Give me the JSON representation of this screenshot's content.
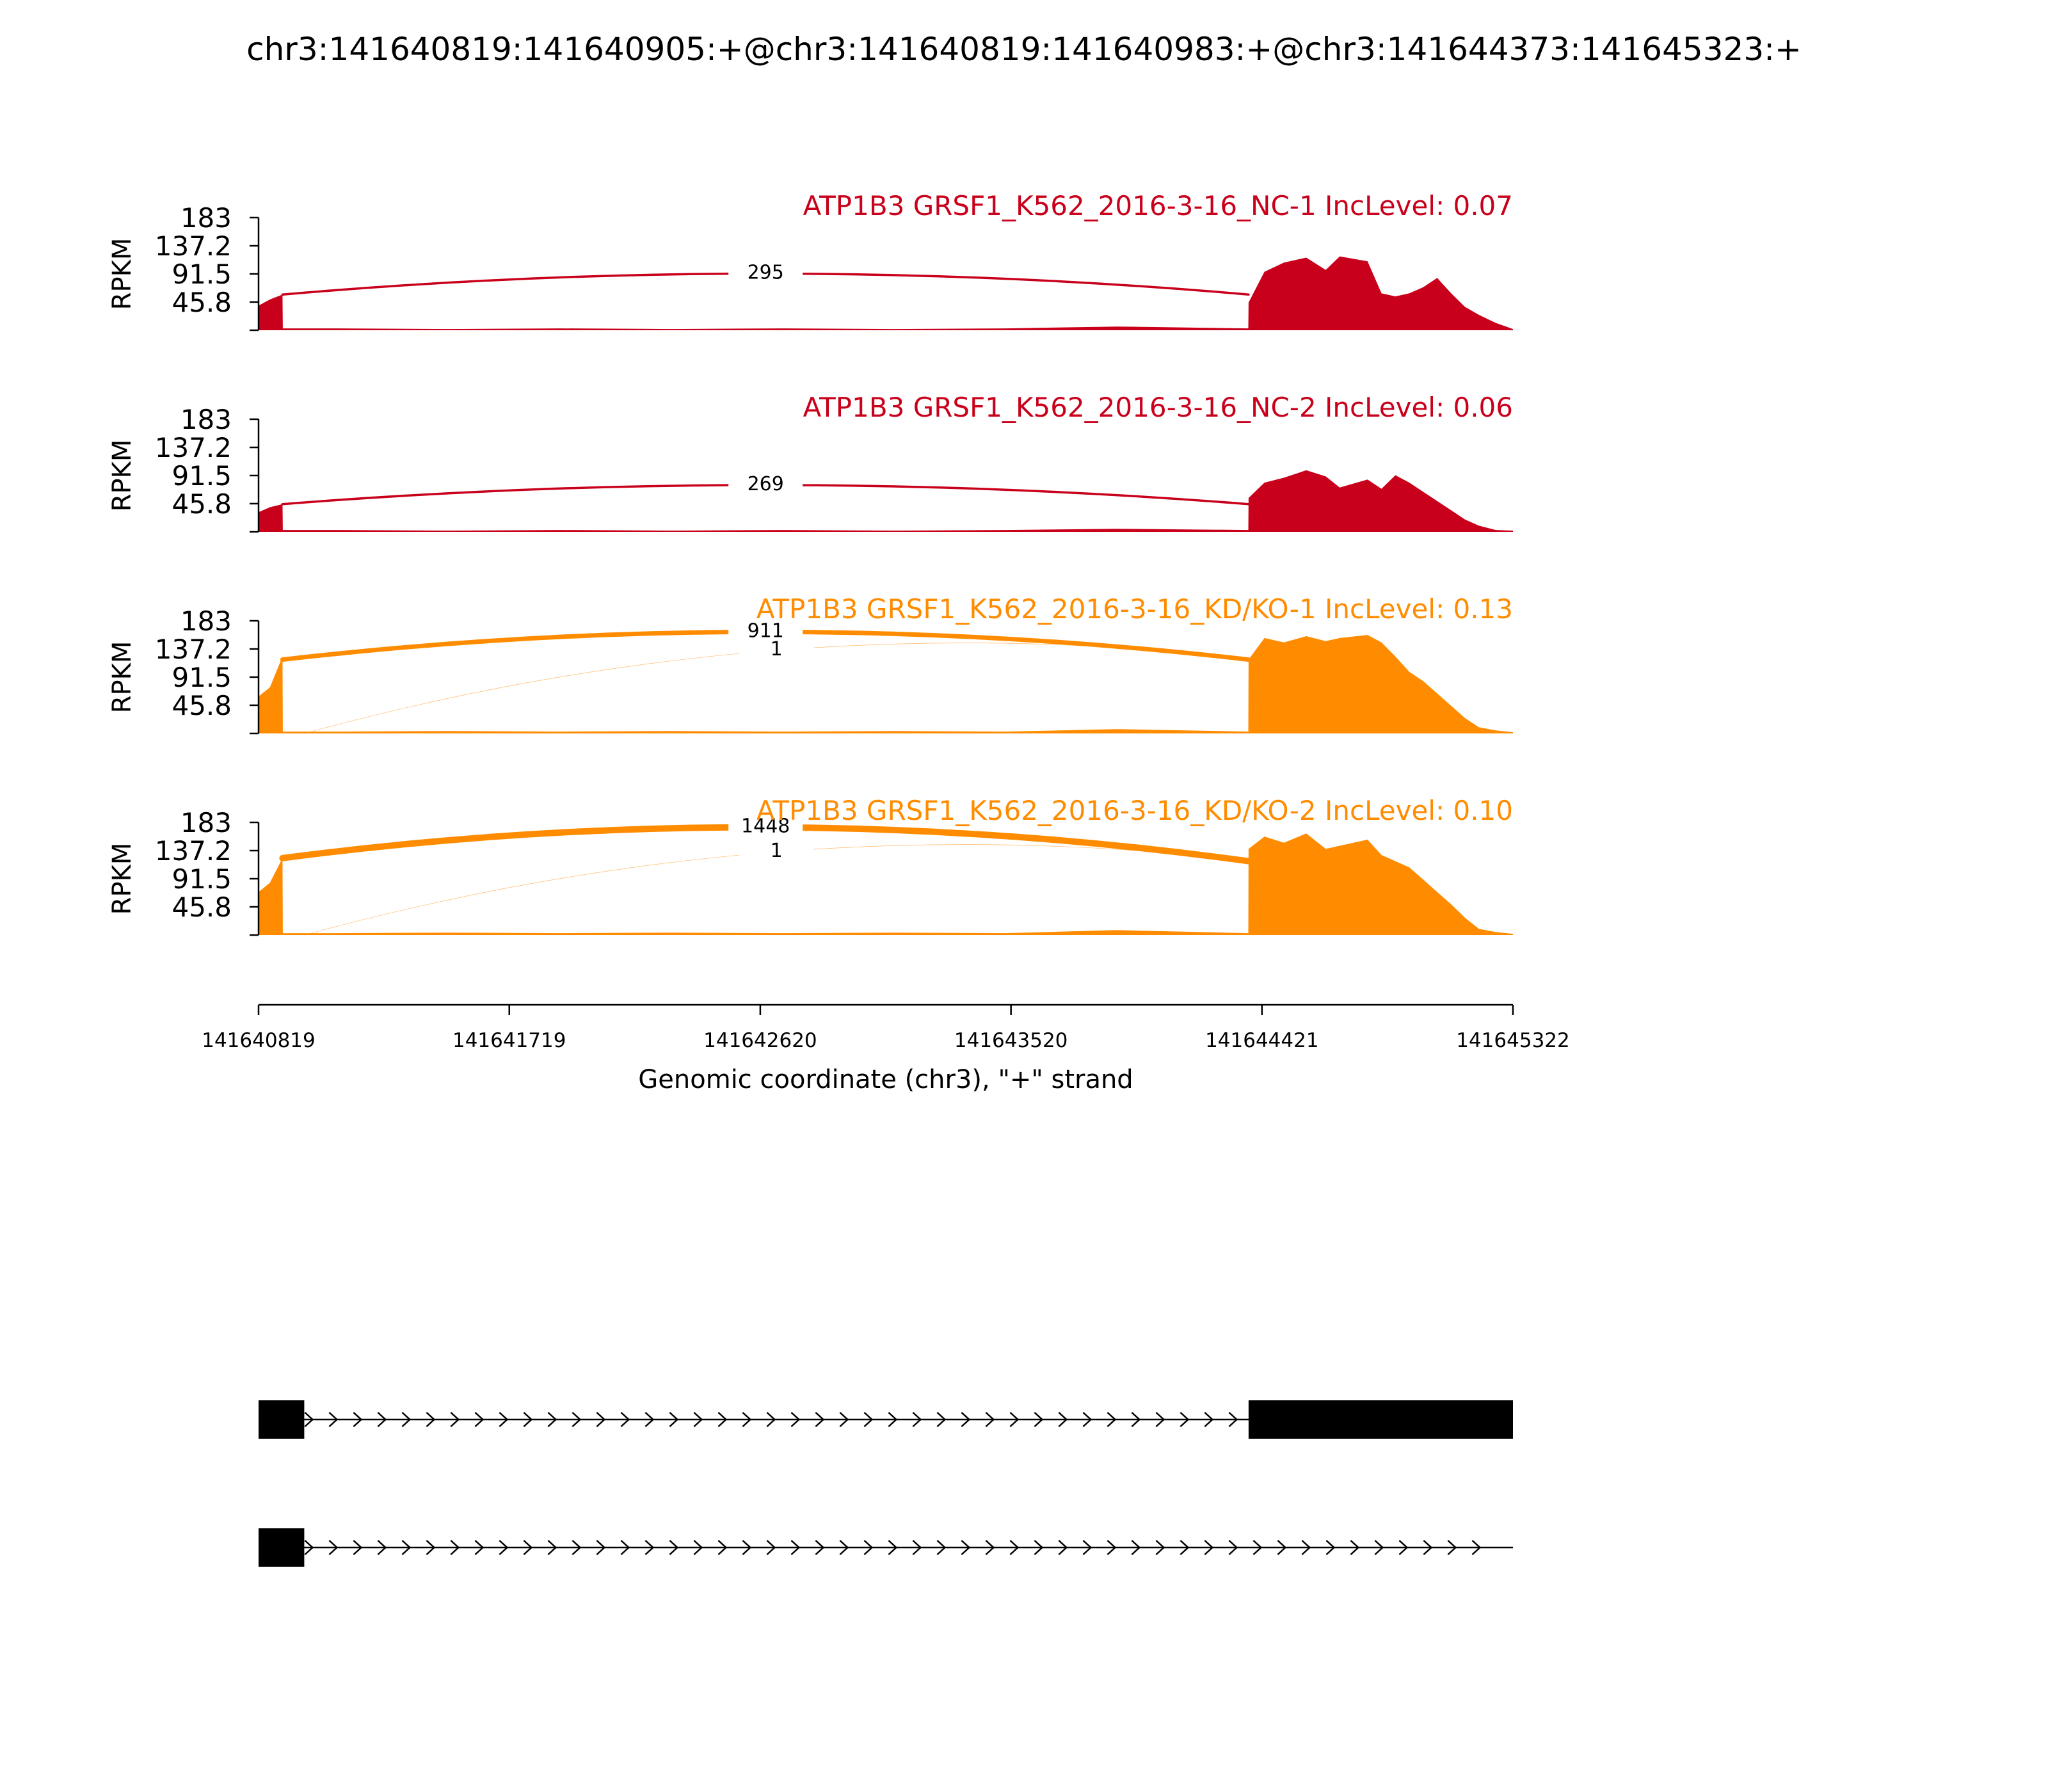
{
  "figure": {
    "title": "chr3:141640819:141640905:+@chr3:141640819:141640983:+@chr3:141644373:141645323:+"
  },
  "chart_data": {
    "type": "area",
    "genome_start": 141640819,
    "genome_end": 141645322,
    "xlabel": "Genomic coordinate (chr3), \"+\" strand",
    "x_ticks": [
      "141640819",
      "141641719",
      "141642620",
      "141643520",
      "141644421",
      "141645322"
    ],
    "ylabel": "RPKM",
    "y_ticks": [
      "183",
      "137.2",
      "91.5",
      "45.8"
    ],
    "ylim": [
      0,
      183
    ],
    "tracks": [
      {
        "label": "ATP1B3 GRSF1_K562_2016-3-16_NC-1 IncLevel: 0.07",
        "color": "#C9001B",
        "junctions": [
          {
            "from": 141640905,
            "to": 141644373,
            "count": "295",
            "peak": 92,
            "end_y": 58,
            "width": 3.5
          }
        ],
        "coverage": [
          [
            141640819,
            40
          ],
          [
            141640860,
            50
          ],
          [
            141640905,
            58
          ],
          [
            141640906,
            3
          ],
          [
            141641100,
            3
          ],
          [
            141641500,
            2
          ],
          [
            141641900,
            3
          ],
          [
            141642300,
            2
          ],
          [
            141642700,
            3
          ],
          [
            141643100,
            2
          ],
          [
            141643500,
            3
          ],
          [
            141643900,
            6
          ],
          [
            141644372,
            3
          ],
          [
            141644373,
            45
          ],
          [
            141644430,
            95
          ],
          [
            141644500,
            110
          ],
          [
            141644580,
            118
          ],
          [
            141644650,
            98
          ],
          [
            141644700,
            120
          ],
          [
            141644800,
            112
          ],
          [
            141644850,
            60
          ],
          [
            141644900,
            55
          ],
          [
            141644950,
            60
          ],
          [
            141645000,
            70
          ],
          [
            141645050,
            85
          ],
          [
            141645100,
            60
          ],
          [
            141645150,
            38
          ],
          [
            141645200,
            25
          ],
          [
            141645260,
            12
          ],
          [
            141645322,
            2
          ]
        ]
      },
      {
        "label": "ATP1B3 GRSF1_K562_2016-3-16_NC-2 IncLevel: 0.06",
        "color": "#C9001B",
        "junctions": [
          {
            "from": 141640905,
            "to": 141644373,
            "count": "269",
            "peak": 76,
            "end_y": 45,
            "width": 3.5
          }
        ],
        "coverage": [
          [
            141640819,
            32
          ],
          [
            141640860,
            40
          ],
          [
            141640905,
            45
          ],
          [
            141640906,
            3
          ],
          [
            141641100,
            3
          ],
          [
            141641500,
            2
          ],
          [
            141641900,
            3
          ],
          [
            141642300,
            2
          ],
          [
            141642700,
            3
          ],
          [
            141643100,
            2
          ],
          [
            141643500,
            3
          ],
          [
            141643900,
            5
          ],
          [
            141644372,
            3
          ],
          [
            141644373,
            55
          ],
          [
            141644430,
            80
          ],
          [
            141644500,
            88
          ],
          [
            141644580,
            100
          ],
          [
            141644650,
            90
          ],
          [
            141644700,
            72
          ],
          [
            141644800,
            85
          ],
          [
            141644850,
            70
          ],
          [
            141644900,
            92
          ],
          [
            141644950,
            80
          ],
          [
            141645000,
            65
          ],
          [
            141645050,
            50
          ],
          [
            141645100,
            35
          ],
          [
            141645150,
            20
          ],
          [
            141645200,
            10
          ],
          [
            141645260,
            3
          ],
          [
            141645322,
            2
          ]
        ]
      },
      {
        "label": "ATP1B3 GRSF1_K562_2016-3-16_KD/KO-1 IncLevel: 0.13",
        "color": "#FF8C00",
        "junctions": [
          {
            "from": 141640905,
            "to": 141644373,
            "count": "911",
            "peak": 165,
            "end_y": 120,
            "width": 7
          },
          {
            "from": 141640983,
            "to": 141644373,
            "count": "1",
            "peak": 135,
            "end_y": 0,
            "width": 0.7
          }
        ],
        "coverage": [
          [
            141640819,
            60
          ],
          [
            141640860,
            75
          ],
          [
            141640905,
            125
          ],
          [
            141640906,
            3
          ],
          [
            141641100,
            3
          ],
          [
            141641500,
            4
          ],
          [
            141641900,
            3
          ],
          [
            141642300,
            4
          ],
          [
            141642700,
            3
          ],
          [
            141643100,
            4
          ],
          [
            141643500,
            3
          ],
          [
            141643900,
            7
          ],
          [
            141644372,
            3
          ],
          [
            141644373,
            120
          ],
          [
            141644430,
            155
          ],
          [
            141644500,
            148
          ],
          [
            141644580,
            158
          ],
          [
            141644650,
            150
          ],
          [
            141644700,
            155
          ],
          [
            141644800,
            160
          ],
          [
            141644850,
            148
          ],
          [
            141644900,
            125
          ],
          [
            141644950,
            100
          ],
          [
            141645000,
            85
          ],
          [
            141645050,
            65
          ],
          [
            141645100,
            45
          ],
          [
            141645150,
            25
          ],
          [
            141645200,
            10
          ],
          [
            141645260,
            5
          ],
          [
            141645322,
            2
          ]
        ]
      },
      {
        "label": "ATP1B3 GRSF1_K562_2016-3-16_KD/KO-2 IncLevel: 0.10",
        "color": "#FF8C00",
        "junctions": [
          {
            "from": 141640905,
            "to": 141644373,
            "count": "1448",
            "peak": 175,
            "end_y": 125,
            "width": 10
          },
          {
            "from": 141640983,
            "to": 141644373,
            "count": "1",
            "peak": 135,
            "end_y": 0,
            "width": 0.7
          }
        ],
        "coverage": [
          [
            141640819,
            70
          ],
          [
            141640860,
            85
          ],
          [
            141640905,
            125
          ],
          [
            141640906,
            3
          ],
          [
            141641100,
            3
          ],
          [
            141641500,
            4
          ],
          [
            141641900,
            3
          ],
          [
            141642300,
            4
          ],
          [
            141642700,
            3
          ],
          [
            141643100,
            4
          ],
          [
            141643500,
            3
          ],
          [
            141643900,
            8
          ],
          [
            141644372,
            3
          ],
          [
            141644373,
            140
          ],
          [
            141644430,
            160
          ],
          [
            141644500,
            150
          ],
          [
            141644580,
            165
          ],
          [
            141644650,
            140
          ],
          [
            141644700,
            145
          ],
          [
            141644800,
            155
          ],
          [
            141644850,
            130
          ],
          [
            141644900,
            120
          ],
          [
            141644950,
            110
          ],
          [
            141645000,
            90
          ],
          [
            141645050,
            70
          ],
          [
            141645100,
            50
          ],
          [
            141645150,
            28
          ],
          [
            141645200,
            10
          ],
          [
            141645260,
            5
          ],
          [
            141645322,
            2
          ]
        ]
      }
    ],
    "isoforms": [
      {
        "exons": [
          [
            141640819,
            141640983
          ],
          [
            141644373,
            141645322
          ]
        ]
      },
      {
        "exons": [
          [
            141640819,
            141640983
          ]
        ]
      }
    ]
  }
}
